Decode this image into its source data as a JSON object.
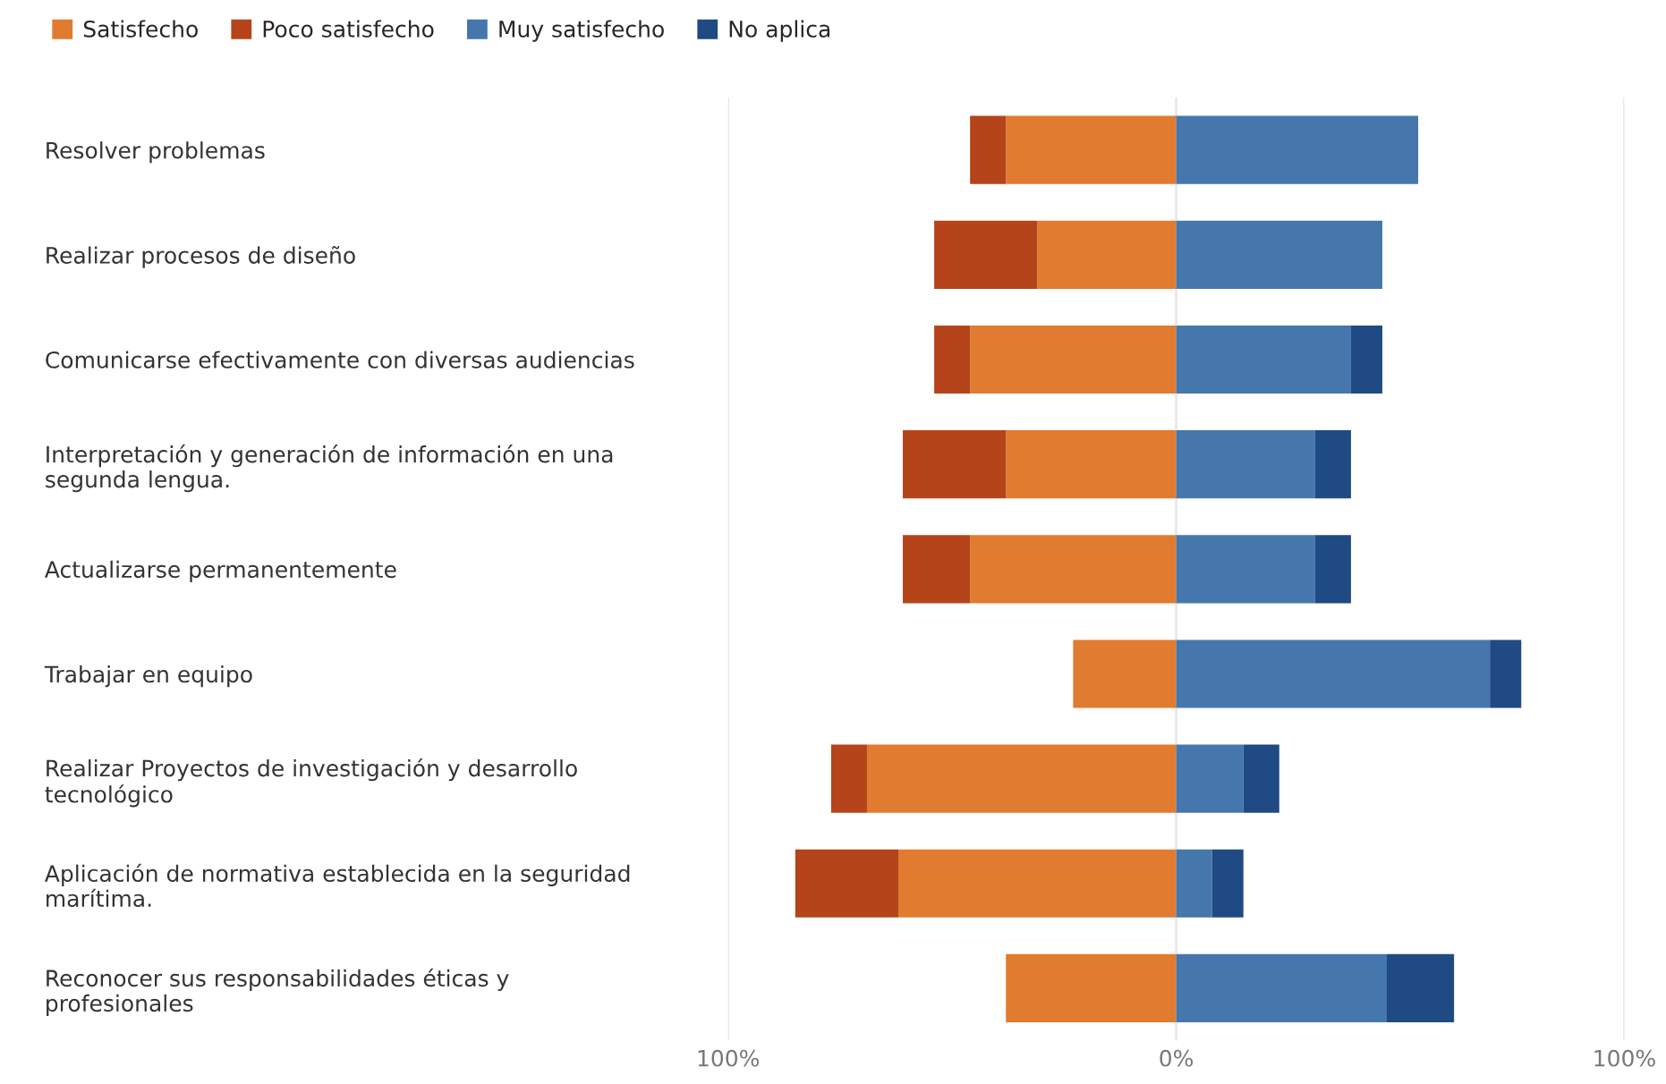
{
  "chart_data": {
    "type": "bar",
    "orientation": "horizontal",
    "stacked": true,
    "categories": [
      "Resolver problemas",
      "Realizar procesos de diseño",
      "Comunicarse efectivamente con diversas audiencias",
      "Interpretación y generación de información en una\nsegunda lengua.",
      "Actualizarse permanentemente",
      "Trabajar en equipo",
      "Realizar Proyectos de investigación y desarrollo\ntecnológico",
      "Aplicación de normativa establecida en la seguridad\nmarítima.",
      "Reconocer sus responsabilidades éticas y\nprofesionales"
    ],
    "series": [
      {
        "name": "Satisfecho",
        "color": "#e07b30",
        "values": [
          -38,
          -31,
          -46,
          -38,
          -46,
          -23,
          -69,
          -62,
          -38
        ]
      },
      {
        "name": "Poco satisfecho",
        "color": "#b5441b",
        "values": [
          -8,
          -23,
          -8,
          -23,
          -15,
          null,
          -8,
          -23,
          null
        ]
      },
      {
        "name": "Muy satisfecho",
        "color": "#4577ad",
        "values": [
          54,
          46,
          39,
          31,
          31,
          70,
          15,
          8,
          47
        ]
      },
      {
        "name": "No aplica",
        "color": "#1f4a84",
        "values": [
          null,
          null,
          7,
          8,
          8,
          7,
          8,
          7,
          15
        ]
      }
    ],
    "xlim": [
      -100,
      100
    ],
    "xticks": [
      {
        "value": -100,
        "label": "100%"
      },
      {
        "value": 0,
        "label": "0%"
      },
      {
        "value": 100,
        "label": "100%"
      }
    ],
    "grid": "x",
    "legend": "top left"
  }
}
